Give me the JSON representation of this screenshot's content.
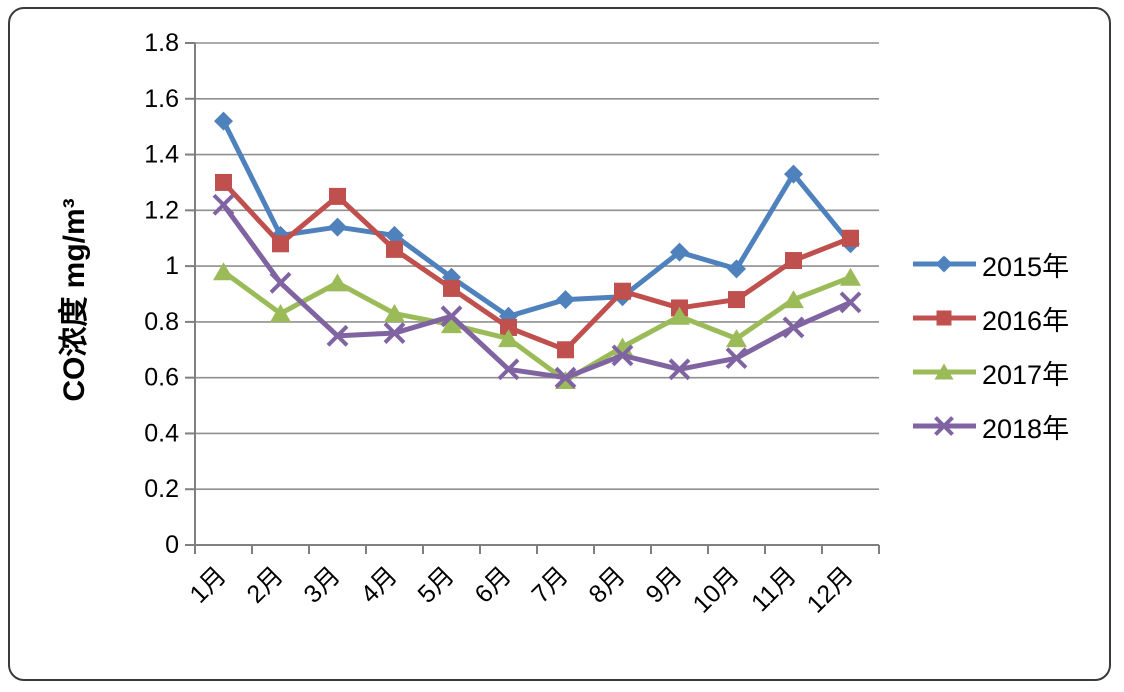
{
  "chart_data": {
    "type": "line",
    "title": "",
    "xlabel": "",
    "ylabel": "CO浓度  mg/m³",
    "ylim": [
      0,
      1.8
    ],
    "ytick_step": 0.2,
    "ytick_labels": [
      "0",
      "0.2",
      "0.4",
      "0.6",
      "0.8",
      "1",
      "1.2",
      "1.4",
      "1.6",
      "1.8"
    ],
    "grid": true,
    "legend_position": "right",
    "categories": [
      "1月",
      "2月",
      "3月",
      "4月",
      "5月",
      "6月",
      "7月",
      "8月",
      "9月",
      "10月",
      "11月",
      "12月"
    ],
    "series": [
      {
        "name": "2015年",
        "color": "#4F81BD",
        "marker": "diamond",
        "values": [
          1.52,
          1.11,
          1.14,
          1.11,
          0.96,
          0.82,
          0.88,
          0.89,
          1.05,
          0.99,
          1.33,
          1.08
        ]
      },
      {
        "name": "2016年",
        "color": "#C0504D",
        "marker": "square",
        "values": [
          1.3,
          1.08,
          1.25,
          1.06,
          0.92,
          0.78,
          0.7,
          0.91,
          0.85,
          0.88,
          1.02,
          1.1
        ]
      },
      {
        "name": "2017年",
        "color": "#9BBB59",
        "marker": "triangle",
        "values": [
          0.98,
          0.83,
          0.94,
          0.83,
          0.79,
          0.74,
          0.59,
          0.71,
          0.82,
          0.74,
          0.88,
          0.96
        ]
      },
      {
        "name": "2018年",
        "color": "#8064A2",
        "marker": "x",
        "values": [
          1.22,
          0.94,
          0.75,
          0.76,
          0.82,
          0.63,
          0.6,
          0.68,
          0.63,
          0.67,
          0.78,
          0.87
        ]
      }
    ],
    "colors": {
      "gridline": "#8F8F8F",
      "axis": "#7F7F7F",
      "label": "#000000"
    }
  }
}
